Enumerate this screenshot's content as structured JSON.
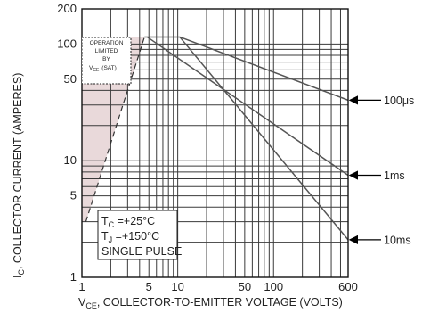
{
  "chart_data": {
    "type": "line",
    "x_scale": "log",
    "y_scale": "log",
    "xlim": [
      1,
      600
    ],
    "ylim": [
      1,
      200
    ],
    "x_ticks": [
      {
        "v": 1,
        "label": "1"
      },
      {
        "v": 5,
        "label": "5"
      },
      {
        "v": 10,
        "label": "10"
      },
      {
        "v": 50,
        "label": "50"
      },
      {
        "v": 100,
        "label": "100"
      },
      {
        "v": 600,
        "label": "600"
      }
    ],
    "y_ticks": [
      {
        "v": 1,
        "label": "1"
      },
      {
        "v": 5,
        "label": "5"
      },
      {
        "v": 10,
        "label": "10"
      },
      {
        "v": 50,
        "label": "50"
      },
      {
        "v": 100,
        "label": "100"
      },
      {
        "v": 200,
        "label": "200"
      }
    ],
    "xlabel": "V CE, COLLECTOR-TO-EMITTER VOLTAGE (VOLTS)",
    "xlabel_main": "V",
    "xlabel_sub": "CE",
    "xlabel_rest": ", COLLECTOR-TO-EMITTER VOLTAGE (VOLTS)",
    "ylabel_main": "I",
    "ylabel_sub": "C",
    "ylabel_rest": ", COLLECTOR CURRENT (AMPERES)",
    "grid": true,
    "series": [
      {
        "name": "100μs",
        "x": [
          10.5,
          600
        ],
        "y": [
          115,
          33
        ]
      },
      {
        "name": "1ms",
        "x": [
          4.8,
          600
        ],
        "y": [
          115,
          7.5
        ]
      },
      {
        "name": "10ms",
        "x": [
          10.5,
          600
        ],
        "y": [
          115,
          2.1
        ]
      }
    ],
    "limit_line": {
      "x": [
        1.1,
        4.5
      ],
      "y": [
        3.0,
        115
      ],
      "style": "dashed"
    },
    "operation_note": [
      "OPERATION",
      "LIMITED",
      "BY"
    ],
    "operation_note_vce": "V",
    "operation_note_sub": "CE",
    "operation_note_sat": "(SAT)",
    "conditions": {
      "tc_main": "T",
      "tc_sub": "C",
      "tc_value": " =+25°C",
      "tj_main": "T",
      "tj_sub": "J",
      "tj_value": " =+150°C",
      "pulse": "SINGLE PULSE"
    },
    "colors": {
      "grid": "#3a3a3a",
      "curve": "#555555",
      "shade": "#e9d9da",
      "arrow": "#000000"
    }
  }
}
